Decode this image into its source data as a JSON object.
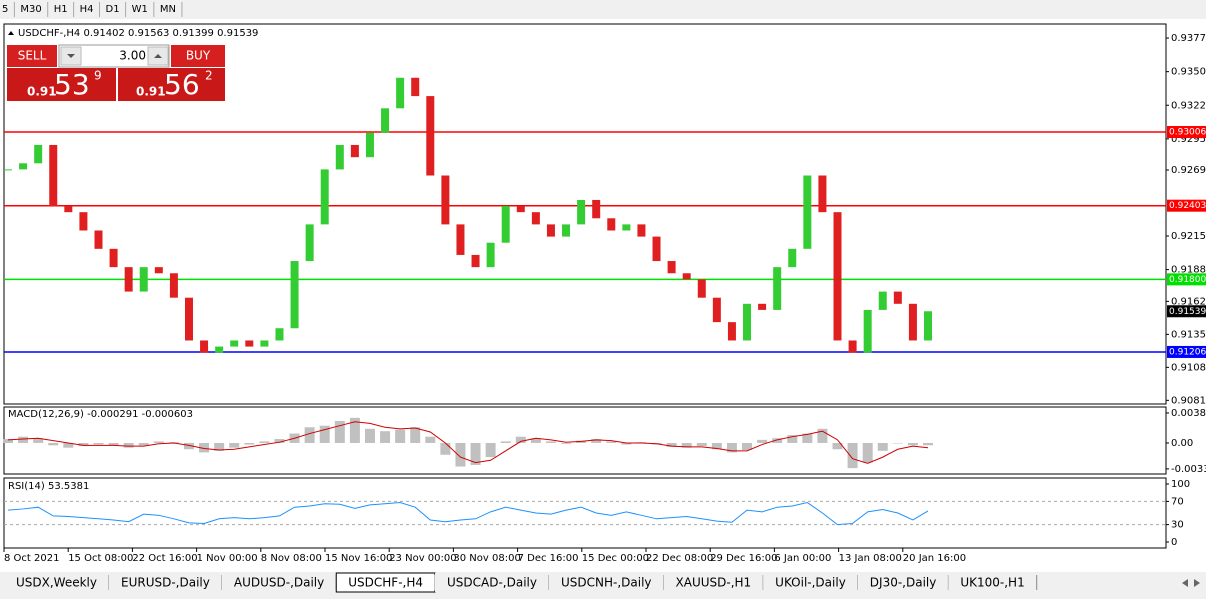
{
  "toolbar": [
    "5",
    "M30",
    "H1",
    "H4",
    "D1",
    "W1",
    "MN"
  ],
  "trade_panel": {
    "sell": "SELL",
    "lots": "3.00",
    "buy": "BUY",
    "sell_big": "0.91",
    "sell_main": "53",
    "sell_sup": "9",
    "buy_big": "0.91",
    "buy_main": "56",
    "buy_sup": "2"
  },
  "chart_data": [
    {
      "type": "candlestick",
      "title": "USDCHF-,H4  0.91402 0.91563 0.91399 0.91539",
      "close": [
        0.927,
        0.9275,
        0.929,
        0.924,
        0.9235,
        0.922,
        0.9205,
        0.919,
        0.917,
        0.919,
        0.9185,
        0.9165,
        0.913,
        0.912,
        0.9125,
        0.913,
        0.9125,
        0.913,
        0.914,
        0.9195,
        0.9225,
        0.927,
        0.929,
        0.928,
        0.93,
        0.932,
        0.9345,
        0.933,
        0.9265,
        0.9225,
        0.92,
        0.919,
        0.921,
        0.924,
        0.9235,
        0.9225,
        0.9215,
        0.9225,
        0.9245,
        0.923,
        0.922,
        0.9225,
        0.9215,
        0.9195,
        0.9185,
        0.918,
        0.9165,
        0.9145,
        0.913,
        0.916,
        0.9155,
        0.919,
        0.9205,
        0.9265,
        0.9235,
        0.913,
        0.912,
        0.9155,
        0.917,
        0.916,
        0.913,
        0.91539
      ],
      "up_color": "#33cc33",
      "down_color": "#e02020",
      "ylim": [
        0.9078,
        0.9389
      ],
      "yticks": [
        0.93775,
        {
          "value": 0.935,
          "label": "0.93500"
        },
        0.93225,
        {
          "value": 0.9295,
          "label": "0.92950"
        },
        0.92695,
        0.92155,
        {
          "value": 0.9188,
          "label": "0.91880"
        },
        {
          "value": 0.9162,
          "label": "0.91620"
        },
        {
          "value": 0.9135,
          "label": "0.91350"
        },
        {
          "value": 0.9108,
          "label": "0.91080"
        },
        {
          "value": 0.9081,
          "label": "0.90810"
        }
      ],
      "levels": [
        {
          "value": 0.93006,
          "color": "#ff0000"
        },
        {
          "value": 0.92403,
          "color": "#ff0000"
        },
        {
          "value": 0.918,
          "label": "0.91800",
          "color": "#00e000"
        },
        {
          "value": 0.91206,
          "color": "#0000ff"
        }
      ],
      "current": 0.91539,
      "xlabels": [
        "8 Oct 2021",
        "15 Oct 08:00",
        "22 Oct 16:00",
        "1 Nov 00:00",
        "8 Nov 08:00",
        "15 Nov 16:00",
        "23 Nov 00:00",
        "30 Nov 08:00",
        "7 Dec 16:00",
        "15 Dec 00:00",
        "22 Dec 08:00",
        "29 Dec 16:00",
        "6 Jan 00:00",
        "13 Jan 08:00",
        "20 Jan 16:00"
      ]
    },
    {
      "type": "macd",
      "title": "MACD(12,26,9) -0.000291 -0.000603",
      "histogram": [
        0.0005,
        0.0008,
        0.0006,
        -0.0003,
        -0.0006,
        -0.0004,
        -0.0002,
        -0.0003,
        -0.0006,
        -0.0003,
        0.0002,
        0.0001,
        -0.0008,
        -0.0012,
        -0.001,
        -0.0006,
        -0.0002,
        0.0002,
        0.0005,
        0.0012,
        0.002,
        0.0022,
        0.0028,
        0.0032,
        0.0018,
        0.0015,
        0.0017,
        0.002,
        0.0008,
        -0.0015,
        -0.003,
        -0.0028,
        -0.0018,
        0.0002,
        0.0008,
        0.0006,
        0.0002,
        -0.0001,
        0.0003,
        0.0005,
        0.0002,
        -0.0002,
        0.0001,
        -0.0002,
        -0.0005,
        -0.0006,
        -0.0004,
        -0.0008,
        -0.0012,
        -0.0009,
        0.0004,
        0.0006,
        0.001,
        0.0012,
        0.0018,
        -0.0008,
        -0.0032,
        -0.0025,
        -0.001,
        0.0,
        -0.0003,
        -0.000291
      ],
      "signal": [
        0.0004,
        0.0005,
        0.0006,
        0.0003,
        0.0,
        -0.0003,
        -0.0003,
        -0.0003,
        -0.0004,
        -0.0004,
        -0.0001,
        0.0,
        -0.0003,
        -0.0007,
        -0.0009,
        -0.0008,
        -0.0005,
        -0.0002,
        0.0001,
        0.0006,
        0.0012,
        0.0017,
        0.0022,
        0.0027,
        0.0025,
        0.002,
        0.0018,
        0.0019,
        0.0014,
        0.0,
        -0.0018,
        -0.0025,
        -0.0022,
        -0.001,
        0.0002,
        0.0006,
        0.0004,
        0.0001,
        0.0002,
        0.0004,
        0.0003,
        0.0,
        0.0,
        -0.0001,
        -0.0004,
        -0.0005,
        -0.0005,
        -0.0007,
        -0.001,
        -0.001,
        -0.0002,
        0.0004,
        0.0008,
        0.0011,
        0.0015,
        0.0004,
        -0.002,
        -0.0026,
        -0.0018,
        -0.0008,
        -0.0004,
        -0.000603
      ],
      "histogram_color": "#c0c0c0",
      "signal_color": "#d00000",
      "ylim": [
        -0.00395,
        0.00458
      ],
      "yticks": [
        0.00382,
        {
          "value": 0,
          "label": "0.00"
        },
        -0.0033
      ]
    },
    {
      "type": "line",
      "title": "RSI(14) 53.5381",
      "values": [
        55,
        57,
        60,
        45,
        44,
        42,
        40,
        38,
        35,
        48,
        46,
        40,
        33,
        32,
        40,
        42,
        40,
        42,
        45,
        60,
        62,
        66,
        65,
        58,
        64,
        66,
        68,
        60,
        38,
        35,
        38,
        40,
        52,
        60,
        55,
        50,
        48,
        55,
        60,
        50,
        46,
        52,
        46,
        40,
        42,
        44,
        40,
        36,
        34,
        55,
        52,
        60,
        62,
        68,
        50,
        30,
        32,
        52,
        56,
        50,
        38,
        53.5381
      ],
      "color": "#1e90ff",
      "ylim": [
        -10.3,
        110.3
      ],
      "yticks": [
        100,
        70,
        30,
        0
      ],
      "levels": [
        70,
        30
      ]
    }
  ],
  "tabs": [
    {
      "label": "USDX,Weekly"
    },
    {
      "label": "EURUSD-,Daily"
    },
    {
      "label": "AUDUSD-,Daily"
    },
    {
      "label": "USDCHF-,H4",
      "active": true
    },
    {
      "label": "USDCAD-,Daily"
    },
    {
      "label": "USDCNH-,Daily"
    },
    {
      "label": "XAUUSD-,H1"
    },
    {
      "label": "UKOil-,Daily"
    },
    {
      "label": "DJ30-,Daily"
    },
    {
      "label": "UK100-,H1"
    }
  ]
}
